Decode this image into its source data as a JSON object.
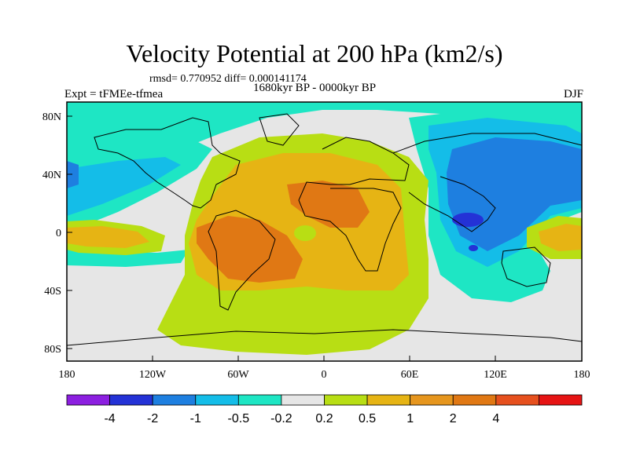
{
  "title": "Velocity Potential at 200 hPa (km2/s)",
  "stats": "rmsd= 0.770952 diff= 0.000141174",
  "expt": "Expt = tFMEe-tfmea",
  "period": "1680kyr BP - 0000kyr BP",
  "season": "DJF",
  "axes": {
    "x_ticks": [
      "180",
      "120W",
      "60W",
      "0",
      "60E",
      "120E",
      "180"
    ],
    "y_ticks": [
      "80N",
      "40N",
      "0",
      "40S",
      "80S"
    ]
  },
  "colorbar": {
    "labels": [
      "-4",
      "-2",
      "-1",
      "-0.5",
      "-0.2",
      "0.2",
      "0.5",
      "1",
      "2",
      "4"
    ],
    "colors": [
      "#8c1fe0",
      "#2432d6",
      "#1e7fe0",
      "#14bde8",
      "#1ee6c4",
      "#e6e6e6",
      "#b8de14",
      "#e6b414",
      "#e6961e",
      "#e07814",
      "#e6501e",
      "#e61414"
    ]
  },
  "map_colors": {
    "background": "#e6e6e6",
    "neg_weak": "#1ee6c4",
    "neg_mid": "#14bde8",
    "neg_strong": "#1e7fe0",
    "neg_max": "#2432d6",
    "pos_weak": "#b8de14",
    "pos_mid": "#e6b414",
    "pos_strong": "#e07814"
  }
}
